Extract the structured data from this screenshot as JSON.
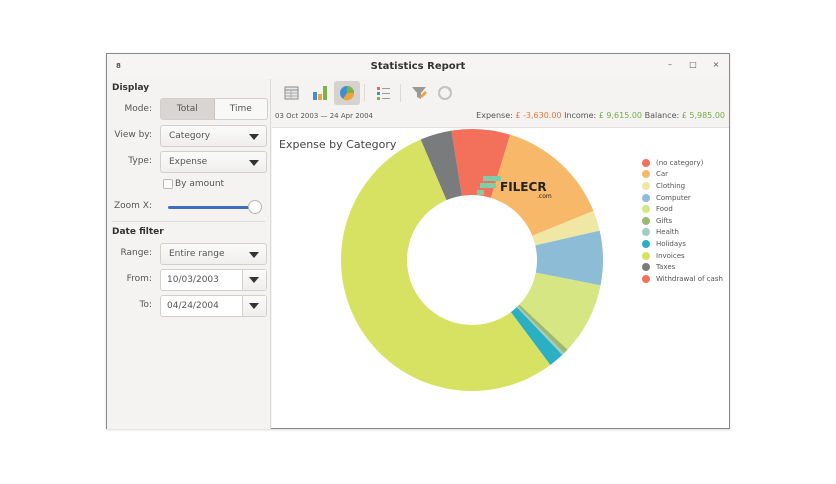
{
  "window": {
    "title": "Statistics Report",
    "menu_glyph": "8",
    "controls": {
      "minimize": "–",
      "maximize": "□",
      "close": "×"
    }
  },
  "sidebar": {
    "display_title": "Display",
    "mode_label": "Mode:",
    "mode_options": [
      "Total",
      "Time"
    ],
    "mode_selected": "Total",
    "viewby_label": "View by:",
    "viewby_value": "Category",
    "type_label": "Type:",
    "type_value": "Expense",
    "by_amount_label": "By amount",
    "by_amount_checked": false,
    "zoom_label": "Zoom X:",
    "zoom_value_pct": 100,
    "date_filter_title": "Date filter",
    "range_label": "Range:",
    "range_value": "Entire range",
    "from_label": "From:",
    "from_value": "10/03/2003",
    "to_label": "To:",
    "to_value": "04/24/2004"
  },
  "toolbar": {
    "buttons": [
      {
        "name": "table-view",
        "icon": "table-icon",
        "active": false
      },
      {
        "name": "bar-chart-view",
        "icon": "bar-chart-icon",
        "active": false
      },
      {
        "name": "pie-chart-view",
        "icon": "pie-chart-icon",
        "active": true
      },
      {
        "name": "legend-toggle",
        "icon": "legend-list-icon",
        "active": false
      },
      {
        "name": "filter",
        "icon": "filter-icon",
        "active": false
      },
      {
        "name": "refresh",
        "icon": "refresh-icon",
        "active": false
      }
    ],
    "date_range": "03 Oct 2003 — 24 Apr 2004",
    "summary": {
      "expense_label": "Expense:",
      "expense_value": "£ -3,630.00",
      "income_label": "Income:",
      "income_value": "£ 9,615.00",
      "balance_label": "Balance:",
      "balance_value": "£ 5,985.00"
    }
  },
  "colors": {
    "expense": "#e0773f",
    "income": "#6fae48",
    "slider": "#3d6ec1"
  },
  "chart_data": {
    "type": "pie",
    "subtype": "donut",
    "title": "Expense by Category",
    "legend_position": "right",
    "start_angle_deg": 351,
    "direction": "clockwise",
    "categories": [
      "(no category)",
      "Car",
      "Clothing",
      "Computer",
      "Food",
      "Gifts",
      "Health",
      "Holidays",
      "Invoices",
      "Taxes",
      "Withdrawal of cash"
    ],
    "values_pct": [
      7.2,
      14.2,
      2.5,
      6.7,
      8.9,
      0.6,
      0.3,
      1.9,
      53.8,
      3.9,
      0.0
    ],
    "colors": [
      "#f3705a",
      "#f8b86a",
      "#f1e7a4",
      "#8dbcd6",
      "#d6e682",
      "#9eb96f",
      "#9ecfc5",
      "#2bafc3",
      "#d7e262",
      "#7a7b7d",
      "#f3705a"
    ]
  },
  "watermark": {
    "text": "FILECR",
    "sub": ".com"
  }
}
